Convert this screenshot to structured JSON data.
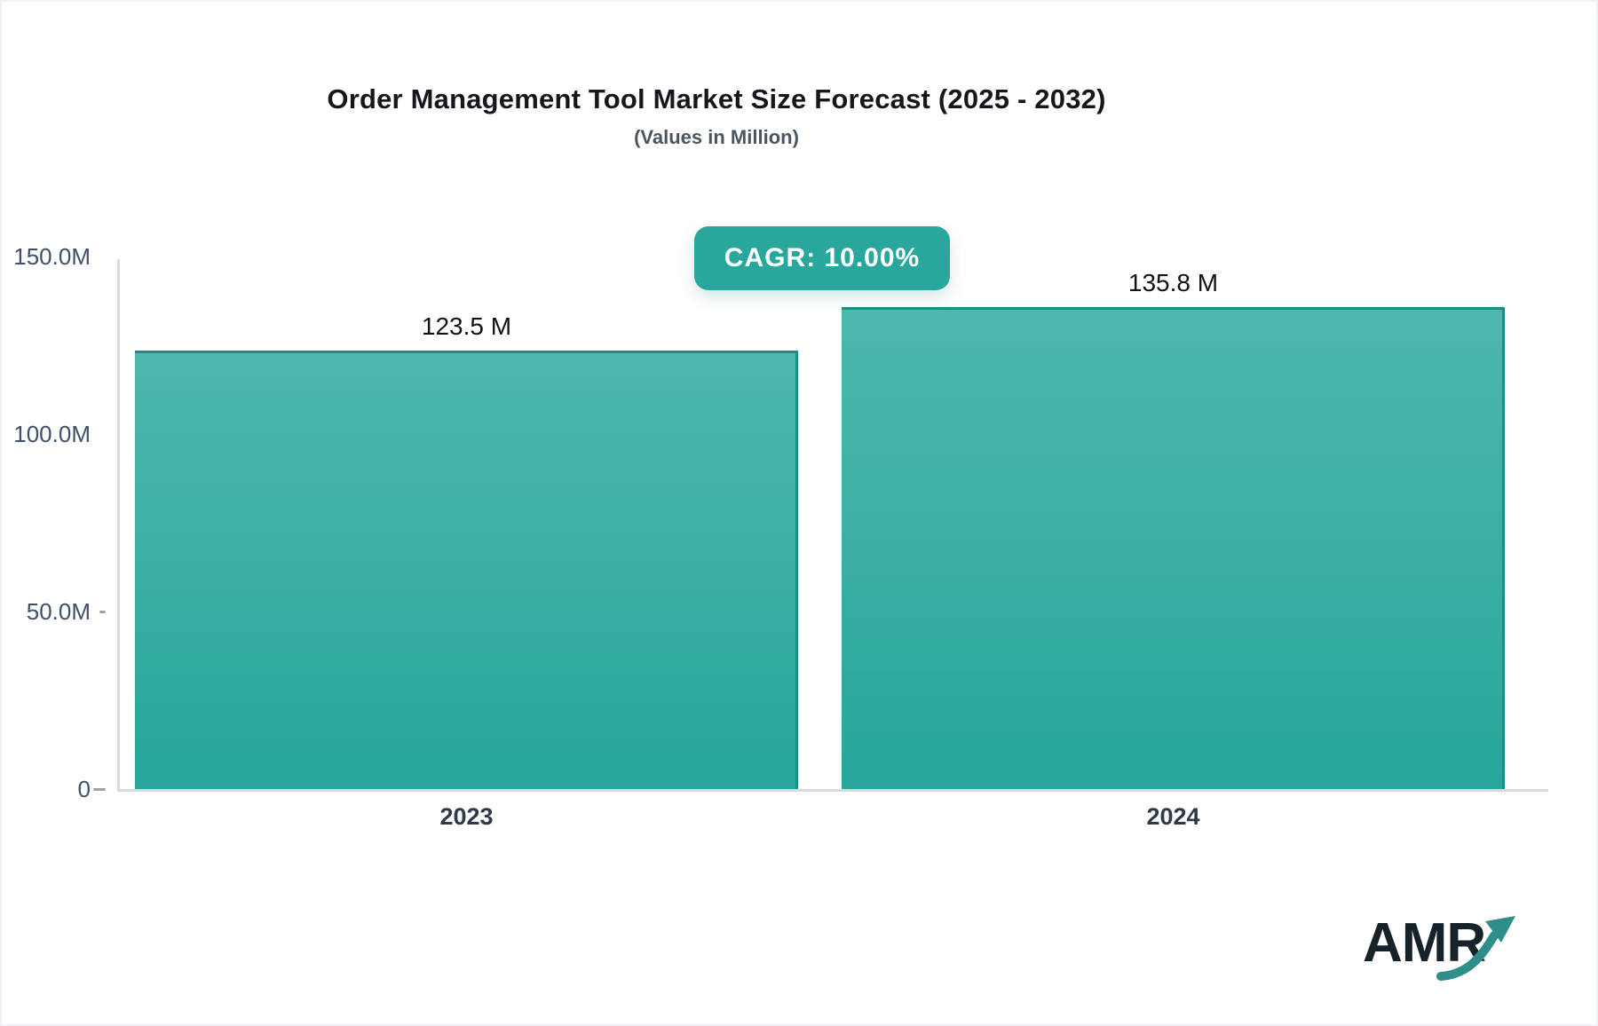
{
  "header": {
    "title": "Order Management Tool Market Size Forecast (2025 - 2032)",
    "subtitle": "(Values in Million)"
  },
  "badge": {
    "label": "CAGR: 10.00%"
  },
  "chart_data": {
    "type": "bar",
    "title": "Order Management Tool Market Size Forecast (2025 - 2032)",
    "subtitle": "(Values in Million)",
    "categories": [
      "2023",
      "2024"
    ],
    "values": [
      123.5,
      135.8
    ],
    "value_labels": [
      "123.5 M",
      "135.8 M"
    ],
    "unit": "Million",
    "cagr_label": "CAGR: 10.00%",
    "ylim": [
      0,
      150
    ],
    "yticks": [
      {
        "value": 0,
        "label": "0",
        "tick_len": 14
      },
      {
        "value": 50,
        "label": "50.0M",
        "tick_len": 7
      },
      {
        "value": 100,
        "label": "100.0M",
        "tick_len": 0
      },
      {
        "value": 150,
        "label": "150.0M",
        "tick_len": 0
      }
    ],
    "grid": false,
    "legend": false,
    "colors": {
      "bar_top": "#4EB8AD",
      "bar_bottom": "#27A69B",
      "bar_edge": "#1D8C82",
      "badge_bg": "#2AA79D",
      "axis_line": "#D7DADF",
      "tick_mark": "#9CA3AB",
      "y_label": "#3F506A",
      "x_label": "#2E3A49",
      "value_label": "#10131A"
    }
  },
  "footer": {
    "logo_text": "AMR",
    "logo_text_color": "#16222A",
    "logo_arrow_color": "#2F8E89"
  }
}
